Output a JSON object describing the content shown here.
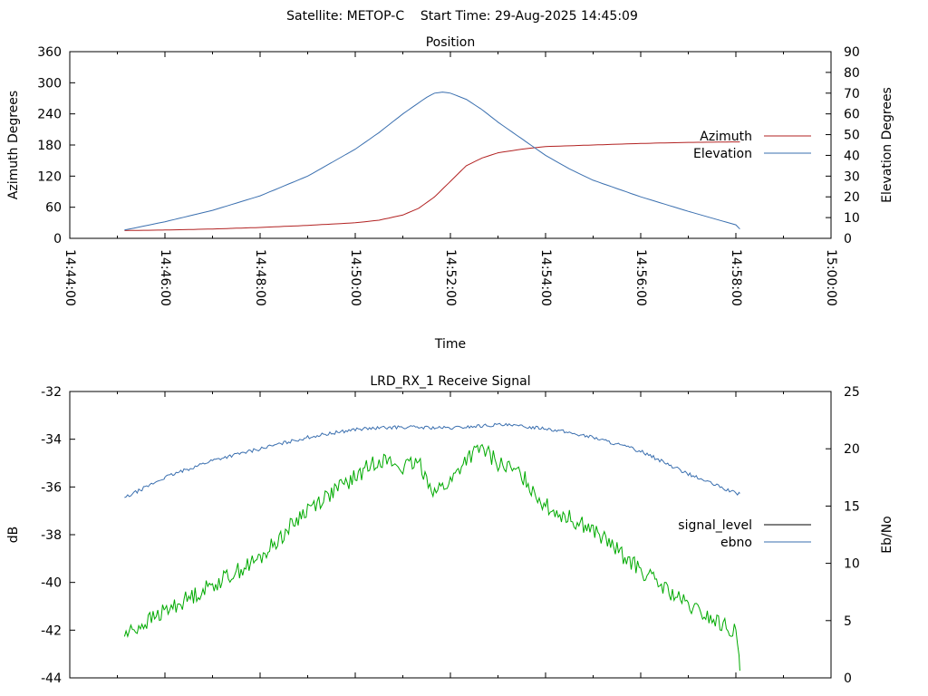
{
  "header": {
    "title": "Satellite: METOP-C    Start Time: 29-Aug-2025 14:45:09"
  },
  "chart_data": [
    {
      "type": "line",
      "title": "Position",
      "xlabel": "Time",
      "ylabel": "Azimuth Degrees",
      "y2label": "Elevation Degrees",
      "xlim": [
        "14:44:00",
        "15:00:00"
      ],
      "ylim": [
        0,
        360
      ],
      "y2lim": [
        0,
        90
      ],
      "x_ticks": [
        "14:44:00",
        "14:46:00",
        "14:48:00",
        "14:50:00",
        "14:52:00",
        "14:54:00",
        "14:56:00",
        "14:58:00",
        "15:00:00"
      ],
      "y_ticks": [
        "0",
        "60",
        "120",
        "180",
        "240",
        "300",
        "360"
      ],
      "y2_ticks": [
        "0",
        "10",
        "20",
        "30",
        "40",
        "50",
        "60",
        "70",
        "80",
        "90"
      ],
      "legend_position": "right",
      "grid": false,
      "series": [
        {
          "name": "Azimuth",
          "axis": "y",
          "color": "#b22222",
          "points": [
            [
              "14:45:09",
              15
            ],
            [
              "14:46:00",
              16
            ],
            [
              "14:47:00",
              18
            ],
            [
              "14:48:00",
              21
            ],
            [
              "14:49:00",
              25
            ],
            [
              "14:50:00",
              30
            ],
            [
              "14:50:30",
              35
            ],
            [
              "14:51:00",
              45
            ],
            [
              "14:51:20",
              58
            ],
            [
              "14:51:40",
              80
            ],
            [
              "14:52:00",
              110
            ],
            [
              "14:52:10",
              125
            ],
            [
              "14:52:20",
              140
            ],
            [
              "14:52:40",
              155
            ],
            [
              "14:53:00",
              165
            ],
            [
              "14:53:30",
              172
            ],
            [
              "14:54:00",
              177
            ],
            [
              "14:55:00",
              180
            ],
            [
              "14:56:00",
              183
            ],
            [
              "14:57:00",
              185
            ],
            [
              "14:58:00",
              186
            ],
            [
              "14:58:05",
              186
            ]
          ]
        },
        {
          "name": "Elevation",
          "axis": "y2",
          "color": "#3a6faf",
          "points": [
            [
              "14:45:09",
              4
            ],
            [
              "14:46:00",
              8
            ],
            [
              "14:47:00",
              13.5
            ],
            [
              "14:48:00",
              20.5
            ],
            [
              "14:49:00",
              30
            ],
            [
              "14:50:00",
              43
            ],
            [
              "14:50:30",
              51
            ],
            [
              "14:51:00",
              60
            ],
            [
              "14:51:30",
              68
            ],
            [
              "14:51:40",
              70
            ],
            [
              "14:51:50",
              70.5
            ],
            [
              "14:52:00",
              70
            ],
            [
              "14:52:20",
              67
            ],
            [
              "14:52:40",
              62
            ],
            [
              "14:53:00",
              56
            ],
            [
              "14:53:30",
              48
            ],
            [
              "14:54:00",
              40
            ],
            [
              "14:54:30",
              33.5
            ],
            [
              "14:55:00",
              28
            ],
            [
              "14:56:00",
              20
            ],
            [
              "14:57:00",
              13
            ],
            [
              "14:58:00",
              6.5
            ],
            [
              "14:58:05",
              4.5
            ]
          ]
        }
      ]
    },
    {
      "type": "line",
      "title": "LRD_RX_1 Receive Signal",
      "xlabel": "",
      "ylabel": "dB",
      "y2label": "Eb/No",
      "xlim": [
        "14:44:00",
        "15:00:00"
      ],
      "ylim": [
        -44,
        -32
      ],
      "y2lim": [
        0,
        25
      ],
      "x_ticks": [
        "14:44:00",
        "14:46:00",
        "14:48:00",
        "14:50:00",
        "14:52:00",
        "14:54:00",
        "14:56:00",
        "14:58:00",
        "15:00:00"
      ],
      "y_ticks": [
        "-44",
        "-42",
        "-40",
        "-38",
        "-36",
        "-34",
        "-32"
      ],
      "y2_ticks": [
        "0",
        "5",
        "10",
        "15",
        "20",
        "25"
      ],
      "x_ticks_labeled": false,
      "legend_position": "right",
      "grid": false,
      "series": [
        {
          "name": "signal_level",
          "axis": "y",
          "color": "#000000",
          "legend_only": true,
          "points": []
        },
        {
          "name": "",
          "axis": "y",
          "color": "#00aa00",
          "noise": 0.35,
          "points": [
            [
              "14:45:09",
              -42.2
            ],
            [
              "14:46:00",
              -41.2
            ],
            [
              "14:47:00",
              -40.1
            ],
            [
              "14:48:00",
              -39.0
            ],
            [
              "14:49:00",
              -36.9
            ],
            [
              "14:50:00",
              -35.6
            ],
            [
              "14:50:30",
              -34.8
            ],
            [
              "14:51:00",
              -35.2
            ],
            [
              "14:51:20",
              -35.0
            ],
            [
              "14:51:40",
              -36.2
            ],
            [
              "14:52:00",
              -35.8
            ],
            [
              "14:52:20",
              -34.8
            ],
            [
              "14:52:40",
              -34.4
            ],
            [
              "14:53:00",
              -35.0
            ],
            [
              "14:53:30",
              -35.5
            ],
            [
              "14:54:00",
              -36.8
            ],
            [
              "14:55:00",
              -37.8
            ],
            [
              "14:56:00",
              -39.5
            ],
            [
              "14:57:00",
              -41.0
            ],
            [
              "14:58:00",
              -42.1
            ],
            [
              "14:58:05",
              -43.7
            ]
          ]
        },
        {
          "name": "ebno",
          "axis": "y2",
          "color": "#3a6faf",
          "noise": 0.15,
          "points": [
            [
              "14:45:09",
              15.7
            ],
            [
              "14:46:00",
              17.5
            ],
            [
              "14:47:00",
              19.0
            ],
            [
              "14:48:00",
              20.0
            ],
            [
              "14:49:00",
              21.0
            ],
            [
              "14:50:00",
              21.7
            ],
            [
              "14:51:00",
              21.9
            ],
            [
              "14:52:00",
              21.8
            ],
            [
              "14:53:00",
              22.1
            ],
            [
              "14:54:00",
              21.8
            ],
            [
              "14:55:00",
              21.0
            ],
            [
              "14:56:00",
              19.8
            ],
            [
              "14:57:00",
              17.8
            ],
            [
              "14:58:00",
              16.1
            ],
            [
              "14:58:05",
              16.1
            ]
          ]
        }
      ]
    }
  ]
}
